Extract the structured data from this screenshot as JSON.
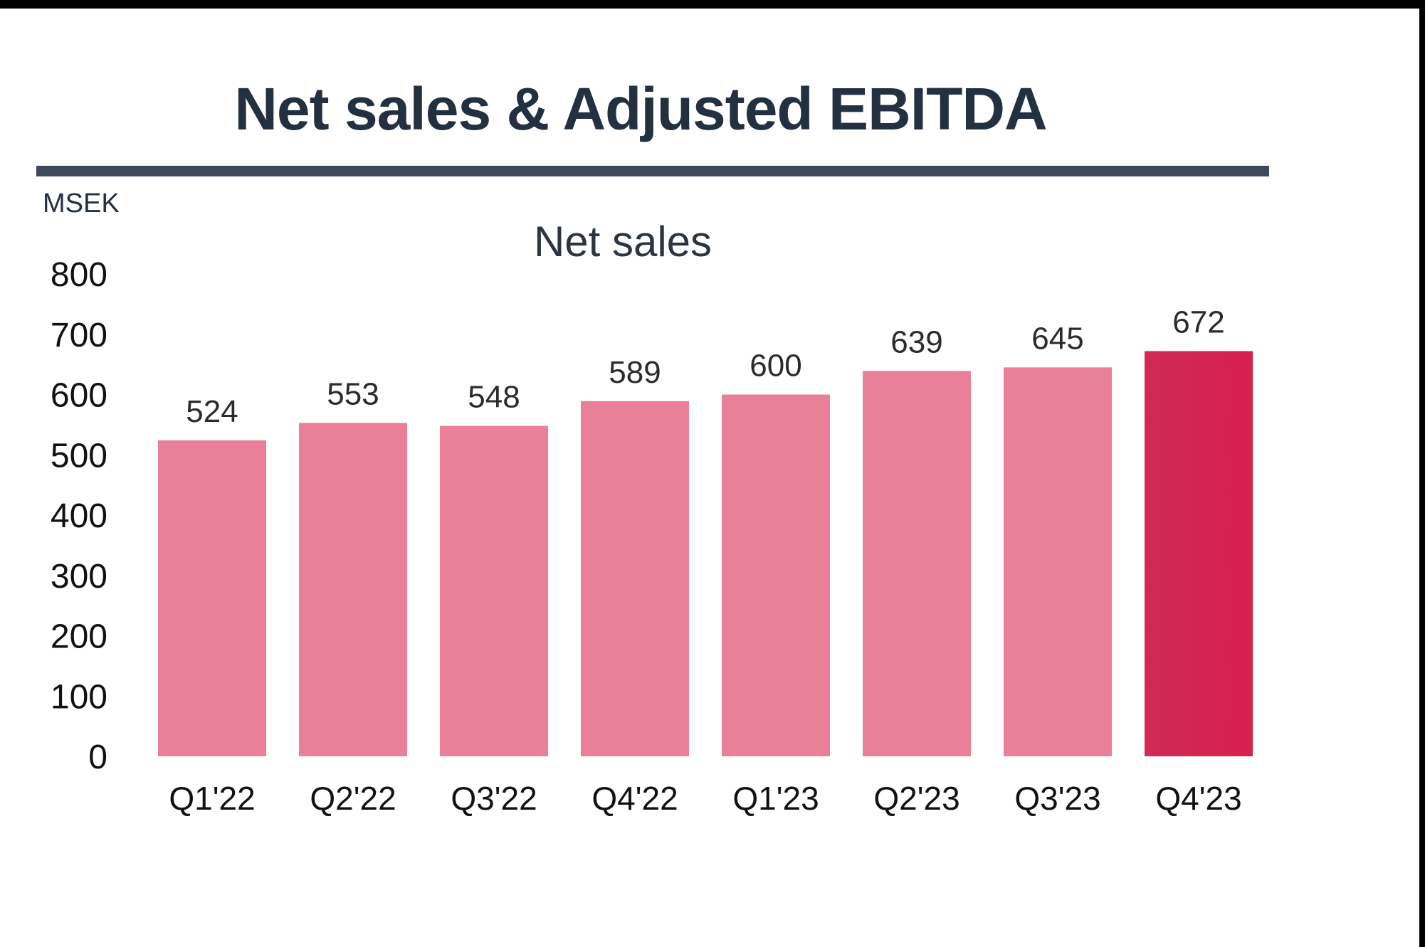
{
  "header": {
    "title": "Net sales & Adjusted EBITDA"
  },
  "chart_data": {
    "type": "bar",
    "title": "Net sales",
    "ylabel": "MSEK",
    "xlabel": "",
    "categories": [
      "Q1'22",
      "Q2'22",
      "Q3'22",
      "Q4'22",
      "Q1'23",
      "Q2'23",
      "Q3'23",
      "Q4'23"
    ],
    "values": [
      524,
      553,
      548,
      589,
      600,
      639,
      645,
      672
    ],
    "value_labels": [
      "524",
      "553",
      "548",
      "589",
      "600",
      "639",
      "645",
      "672"
    ],
    "yticks": [
      0,
      100,
      200,
      300,
      400,
      500,
      600,
      700,
      800
    ],
    "ylim": [
      0,
      800
    ],
    "grid": false,
    "legend": "none",
    "colors": {
      "bar": "#ea7f9a",
      "highlight_bar": "#d81f4f",
      "title": "#22303f",
      "rule": "#3d4a5b"
    },
    "highlight_index": 7
  }
}
